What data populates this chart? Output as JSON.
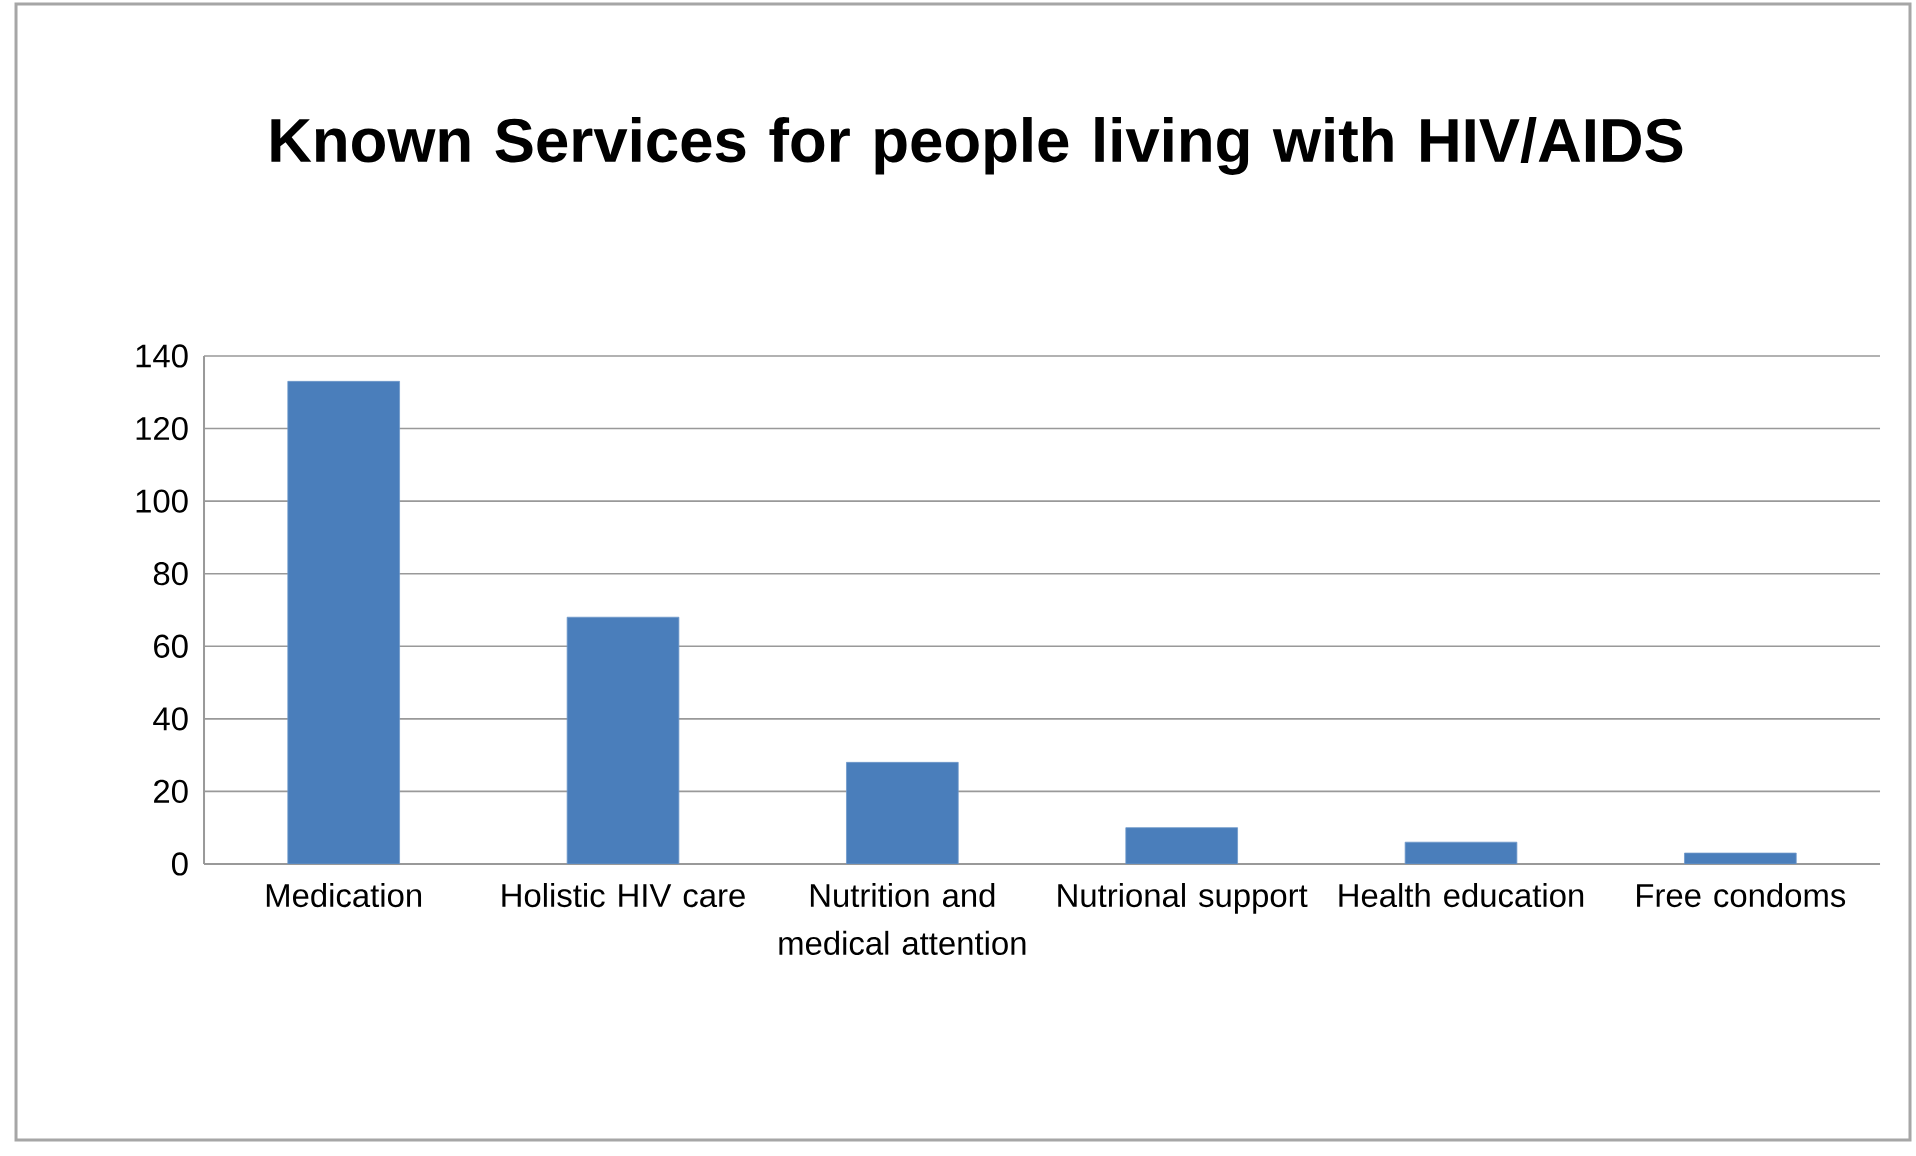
{
  "chart_data": {
    "type": "bar",
    "title": "Known Services for people living with HIV/AIDS",
    "categories": [
      "Medication",
      "Holistic HIV care",
      "Nutrition and medical attention",
      "Nutrional support",
      "Health education",
      "Free condoms"
    ],
    "values": [
      133,
      68,
      28,
      10,
      6,
      3
    ],
    "color": "#4a7ebb",
    "ylim": [
      0,
      140
    ],
    "yticks": [
      0,
      20,
      40,
      60,
      80,
      100,
      120,
      140
    ],
    "grid": "y"
  }
}
